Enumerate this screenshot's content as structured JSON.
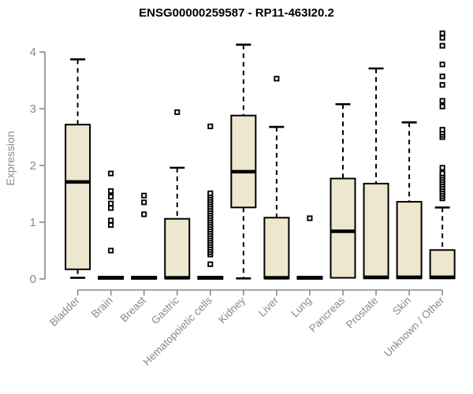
{
  "chart_data": {
    "type": "boxplot",
    "title": "ENSG00000259587 - RP11-463I20.2",
    "ylabel": "Expression",
    "xlabel": "",
    "ylim": [
      0,
      4.4
    ],
    "yticks": [
      0,
      1,
      2,
      3,
      4
    ],
    "grid": false,
    "legend": "none",
    "colors": {
      "box_fill": "#EDE7CF",
      "box_border": "#000000",
      "median": "#000000",
      "whisker": "#000000",
      "outlier": "#000000",
      "axis": "#898989",
      "tick_label": "#898989",
      "title": "#000000"
    },
    "categories": [
      "Bladder",
      "Brain",
      "Breast",
      "Gastric",
      "Hematopoietic cells",
      "Kidney",
      "Liver",
      "Lung",
      "Pancreas",
      "Prostate",
      "Skin",
      "Unknown / Other"
    ],
    "series": [
      {
        "category": "Bladder",
        "whisker_low": 0.02,
        "q1": 0.17,
        "median": 1.71,
        "q3": 2.72,
        "whisker_high": 3.87,
        "outliers": []
      },
      {
        "category": "Brain",
        "whisker_low": 0.0,
        "q1": 0.0,
        "median": 0.02,
        "q3": 0.04,
        "whisker_high": 0.04,
        "outliers": [
          0.5,
          0.95,
          1.03,
          1.25,
          1.33,
          1.45,
          1.55,
          1.86
        ]
      },
      {
        "category": "Breast",
        "whisker_low": 0.0,
        "q1": 0.0,
        "median": 0.02,
        "q3": 0.04,
        "whisker_high": 0.04,
        "outliers": [
          1.14,
          1.35,
          1.47
        ]
      },
      {
        "category": "Gastric",
        "whisker_low": 0.01,
        "q1": 0.01,
        "median": 0.02,
        "q3": 1.06,
        "whisker_high": 1.96,
        "outliers": [
          2.94
        ]
      },
      {
        "category": "Hematopoietic cells",
        "whisker_low": 0.0,
        "q1": 0.0,
        "median": 0.02,
        "q3": 0.04,
        "whisker_high": 0.04,
        "outliers": [
          0.26,
          0.43,
          0.47,
          0.51,
          0.55,
          0.59,
          0.63,
          0.67,
          0.71,
          0.75,
          0.79,
          0.83,
          0.87,
          0.91,
          0.95,
          0.99,
          1.03,
          1.07,
          1.11,
          1.15,
          1.19,
          1.23,
          1.27,
          1.31,
          1.35,
          1.39,
          1.43,
          1.47,
          1.51,
          2.69
        ]
      },
      {
        "category": "Kidney",
        "whisker_low": 0.01,
        "q1": 1.26,
        "median": 1.89,
        "q3": 2.88,
        "whisker_high": 4.13,
        "outliers": []
      },
      {
        "category": "Liver",
        "whisker_low": 0.01,
        "q1": 0.01,
        "median": 0.02,
        "q3": 1.08,
        "whisker_high": 2.68,
        "outliers": [
          3.53
        ]
      },
      {
        "category": "Lung",
        "whisker_low": 0.0,
        "q1": 0.0,
        "median": 0.02,
        "q3": 0.04,
        "whisker_high": 0.04,
        "outliers": [
          1.07
        ]
      },
      {
        "category": "Pancreas",
        "whisker_low": 0.02,
        "q1": 0.02,
        "median": 0.84,
        "q3": 1.77,
        "whisker_high": 3.08,
        "outliers": []
      },
      {
        "category": "Prostate",
        "whisker_low": 0.01,
        "q1": 0.01,
        "median": 0.03,
        "q3": 1.68,
        "whisker_high": 3.71,
        "outliers": []
      },
      {
        "category": "Skin",
        "whisker_low": 0.01,
        "q1": 0.01,
        "median": 0.03,
        "q3": 1.36,
        "whisker_high": 2.76,
        "outliers": []
      },
      {
        "category": "Unknown / Other",
        "whisker_low": 0.01,
        "q1": 0.01,
        "median": 0.03,
        "q3": 0.51,
        "whisker_high": 1.26,
        "outliers": [
          1.42,
          1.46,
          1.5,
          1.54,
          1.58,
          1.62,
          1.66,
          1.7,
          1.74,
          1.78,
          1.82,
          1.86,
          1.96,
          2.5,
          2.54,
          2.58,
          2.63,
          3.04,
          3.14,
          3.42,
          3.57,
          3.78,
          4.11,
          4.25,
          4.33
        ]
      }
    ]
  }
}
